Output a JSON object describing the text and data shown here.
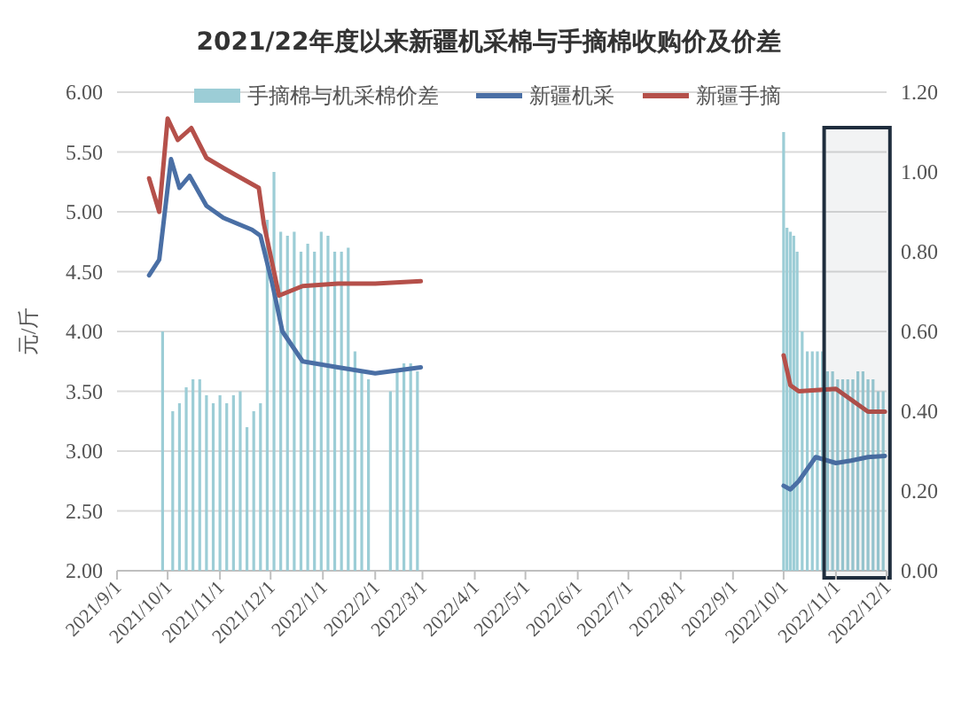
{
  "chart_data": {
    "type": "line",
    "title": "2021/22年度以来新疆机采棉与手摘棉收购价及价差",
    "ylabel": "元/斤",
    "xlim": [
      "2021-09-01",
      "2022-12-01"
    ],
    "xticks": [
      {
        "value": "2021-09-01",
        "label": "2021/9/1"
      },
      {
        "value": "2021-10-01",
        "label": "2021/10/1"
      },
      {
        "value": "2021-11-01",
        "label": "2021/11/1"
      },
      {
        "value": "2021-12-01",
        "label": "2021/12/1"
      },
      {
        "value": "2022-01-01",
        "label": "2022/1/1"
      },
      {
        "value": "2022-02-01",
        "label": "2022/2/1"
      },
      {
        "value": "2022-03-01",
        "label": "2022/3/1"
      },
      {
        "value": "2022-04-01",
        "label": "2022/4/1"
      },
      {
        "value": "2022-05-01",
        "label": "2022/5/1"
      },
      {
        "value": "2022-06-01",
        "label": "2022/6/1"
      },
      {
        "value": "2022-07-01",
        "label": "2022/7/1"
      },
      {
        "value": "2022-08-01",
        "label": "2022/8/1"
      },
      {
        "value": "2022-09-01",
        "label": "2022/9/1"
      },
      {
        "value": "2022-10-01",
        "label": "2022/10/1"
      },
      {
        "value": "2022-11-01",
        "label": "2022/11/1"
      },
      {
        "value": "2022-12-01",
        "label": "2022/12/1"
      }
    ],
    "ylim": [
      2,
      6
    ],
    "yticks": [
      {
        "value": 2,
        "label": "2.00"
      },
      {
        "value": 2.5,
        "label": "2.50"
      },
      {
        "value": 3,
        "label": "3.00"
      },
      {
        "value": 3.5,
        "label": "3.50"
      },
      {
        "value": 4,
        "label": "4.00"
      },
      {
        "value": 4.5,
        "label": "4.50"
      },
      {
        "value": 5,
        "label": "5.00"
      },
      {
        "value": 5.5,
        "label": "5.50"
      },
      {
        "value": 6,
        "label": "6.00"
      }
    ],
    "y2lim": [
      0,
      1.2
    ],
    "y2ticks": [
      {
        "value": 0,
        "label": "0.00"
      },
      {
        "value": 0.2,
        "label": "0.20"
      },
      {
        "value": 0.4,
        "label": "0.40"
      },
      {
        "value": 0.6,
        "label": "0.60"
      },
      {
        "value": 0.8,
        "label": "0.80"
      },
      {
        "value": 1,
        "label": "1.00"
      },
      {
        "value": 1.2,
        "label": "1.20"
      }
    ],
    "grid": "y",
    "legend": "top",
    "bands": [
      {
        "axis": "x",
        "from": "2022-10-25",
        "to": "2022-12-03",
        "color": "#1f2d3d"
      }
    ],
    "series": [
      {
        "name": "手摘棉与机采棉价差",
        "type": "bar",
        "axis": "y2",
        "color": "#9ccdd6",
        "x": [
          "2021-09-28",
          "2021-10-04",
          "2021-10-08",
          "2021-10-12",
          "2021-10-16",
          "2021-10-20",
          "2021-10-24",
          "2021-10-28",
          "2021-11-01",
          "2021-11-05",
          "2021-11-09",
          "2021-11-13",
          "2021-11-17",
          "2021-11-21",
          "2021-11-25",
          "2021-11-29",
          "2021-12-03",
          "2021-12-07",
          "2021-12-11",
          "2021-12-15",
          "2021-12-19",
          "2021-12-23",
          "2021-12-27",
          "2021-12-31",
          "2022-01-04",
          "2022-01-08",
          "2022-01-12",
          "2022-01-16",
          "2022-01-20",
          "2022-01-24",
          "2022-01-28",
          "2022-02-10",
          "2022-02-14",
          "2022-02-18",
          "2022-02-22",
          "2022-02-26",
          "2022-10-01",
          "2022-10-03",
          "2022-10-05",
          "2022-10-07",
          "2022-10-09",
          "2022-10-12",
          "2022-10-15",
          "2022-10-18",
          "2022-10-21",
          "2022-10-24",
          "2022-10-27",
          "2022-10-30",
          "2022-11-02",
          "2022-11-05",
          "2022-11-08",
          "2022-11-11",
          "2022-11-14",
          "2022-11-17",
          "2022-11-20",
          "2022-11-23",
          "2022-11-26",
          "2022-11-29"
        ],
        "values": [
          0.6,
          0.4,
          0.42,
          0.46,
          0.48,
          0.48,
          0.44,
          0.42,
          0.44,
          0.42,
          0.44,
          0.45,
          0.36,
          0.4,
          0.42,
          0.88,
          1.0,
          0.85,
          0.84,
          0.85,
          0.8,
          0.82,
          0.8,
          0.85,
          0.84,
          0.8,
          0.8,
          0.81,
          0.55,
          0.5,
          0.48,
          0.45,
          0.5,
          0.52,
          0.52,
          0.5,
          1.1,
          0.86,
          0.85,
          0.84,
          0.8,
          0.6,
          0.55,
          0.55,
          0.55,
          0.55,
          0.5,
          0.5,
          0.48,
          0.48,
          0.48,
          0.48,
          0.5,
          0.5,
          0.48,
          0.48,
          0.45,
          0.45
        ]
      },
      {
        "name": "新疆机采",
        "color": "#4a6fa5",
        "x": [
          "2021-09-20",
          "2021-09-26",
          "2021-10-03",
          "2021-10-08",
          "2021-10-14",
          "2021-10-24",
          "2021-11-03",
          "2021-11-20",
          "2021-11-25",
          "2021-12-02",
          "2021-12-08",
          "2021-12-20",
          "2022-01-10",
          "2022-02-01",
          "2022-02-28",
          "2022-06-01",
          "2022-10-01",
          "2022-10-05",
          "2022-10-10",
          "2022-10-20",
          "2022-11-01",
          "2022-11-10",
          "2022-11-20",
          "2022-11-30"
        ],
        "values": [
          4.47,
          4.6,
          5.44,
          5.2,
          5.3,
          5.05,
          4.95,
          4.85,
          4.8,
          4.4,
          4.0,
          3.75,
          3.7,
          3.65,
          3.7,
          null,
          2.71,
          2.68,
          2.75,
          2.95,
          2.9,
          2.92,
          2.95,
          2.96
        ]
      },
      {
        "name": "新疆手摘",
        "color": "#b5504a",
        "x": [
          "2021-09-20",
          "2021-09-26",
          "2021-10-01",
          "2021-10-07",
          "2021-10-15",
          "2021-10-24",
          "2021-11-05",
          "2021-11-24",
          "2021-11-27",
          "2021-12-06",
          "2021-12-20",
          "2022-01-10",
          "2022-02-01",
          "2022-02-28",
          "2022-06-01",
          "2022-10-01",
          "2022-10-05",
          "2022-10-10",
          "2022-11-01",
          "2022-11-15",
          "2022-11-20",
          "2022-11-30"
        ],
        "values": [
          5.28,
          5.0,
          5.78,
          5.6,
          5.7,
          5.45,
          5.35,
          5.2,
          4.9,
          4.3,
          4.38,
          4.4,
          4.4,
          4.42,
          null,
          3.8,
          3.55,
          3.5,
          3.52,
          3.38,
          3.33,
          3.33
        ]
      }
    ]
  }
}
